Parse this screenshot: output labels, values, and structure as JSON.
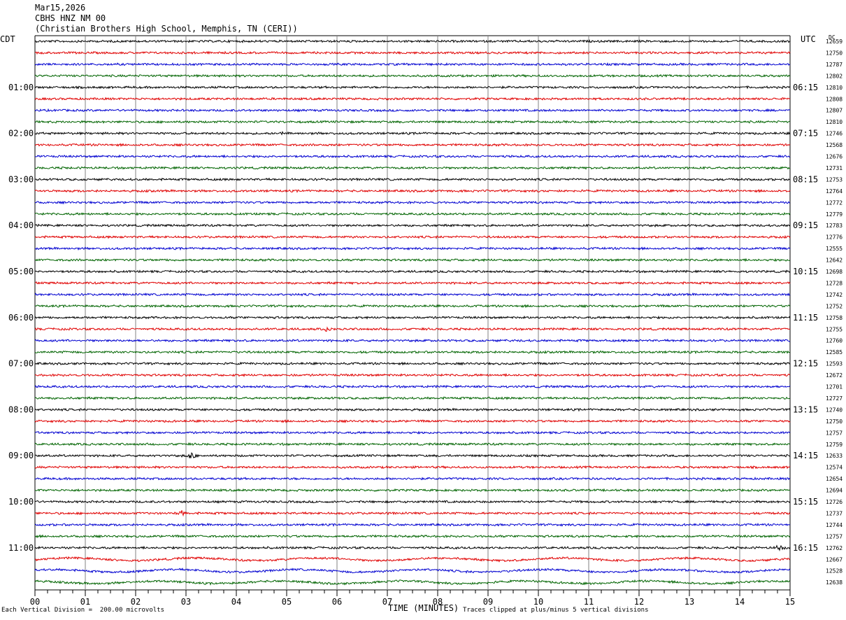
{
  "header": {
    "date": "Mar15,2026",
    "station": "CBHS HNZ NM 00",
    "location": "(Christian Brothers High School, Memphis, TN (CERI))"
  },
  "left_tz_label": "CDT",
  "right_tz_label": "UTC",
  "dc_label": "DC",
  "footer": {
    "scale_note": "Each Vertical Division =  200.00 microvolts",
    "xlabel": "TIME (MINUTES)",
    "clip_note": "Traces clipped at plus/minus 5 vertical divisions"
  },
  "colors": {
    "trace_cycle": [
      "#000000",
      "#e00000",
      "#0000d0",
      "#006400"
    ],
    "grid": "#808080",
    "background": "#ffffff"
  },
  "chart_data": {
    "type": "line",
    "subtype": "helicorder",
    "x_range": [
      0,
      15
    ],
    "x_ticks": [
      "00",
      "01",
      "02",
      "03",
      "04",
      "05",
      "06",
      "07",
      "08",
      "09",
      "10",
      "11",
      "12",
      "13",
      "14",
      "15"
    ],
    "left_hour_labels": [
      "01:00",
      "02:00",
      "03:00",
      "04:00",
      "05:00",
      "06:00",
      "07:00",
      "08:00",
      "09:00",
      "10:00",
      "11:00"
    ],
    "right_hour_labels": [
      "06:15",
      "07:15",
      "08:15",
      "09:15",
      "10:15",
      "11:15",
      "12:15",
      "13:15",
      "14:15",
      "15:15",
      "16:15"
    ],
    "first_hour_label_row": 4,
    "rows_per_hour": 4,
    "dc_values": [
      "12659",
      "12750",
      "12787",
      "12802",
      "12810",
      "12808",
      "12807",
      "12810",
      "12746",
      "12568",
      "12676",
      "12731",
      "12753",
      "12764",
      "12772",
      "12779",
      "12783",
      "12776",
      "12555",
      "12642",
      "12698",
      "12728",
      "12742",
      "12752",
      "12758",
      "12755",
      "12760",
      "12585",
      "12593",
      "12672",
      "12701",
      "12727",
      "12740",
      "12750",
      "12757",
      "12759",
      "12633",
      "12574",
      "12654",
      "12694",
      "12726",
      "12737",
      "12744",
      "12757",
      "12762",
      "12667",
      "12528",
      "12638"
    ],
    "events": [
      {
        "row": 8,
        "minute": 4.9,
        "amp": 2
      },
      {
        "row": 25,
        "minute": 5.8,
        "amp": 3
      },
      {
        "row": 36,
        "minute": 3.1,
        "amp": 5
      },
      {
        "row": 41,
        "minute": 2.9,
        "amp": 6
      },
      {
        "row": 44,
        "minute": 14.8,
        "amp": 5
      }
    ]
  }
}
